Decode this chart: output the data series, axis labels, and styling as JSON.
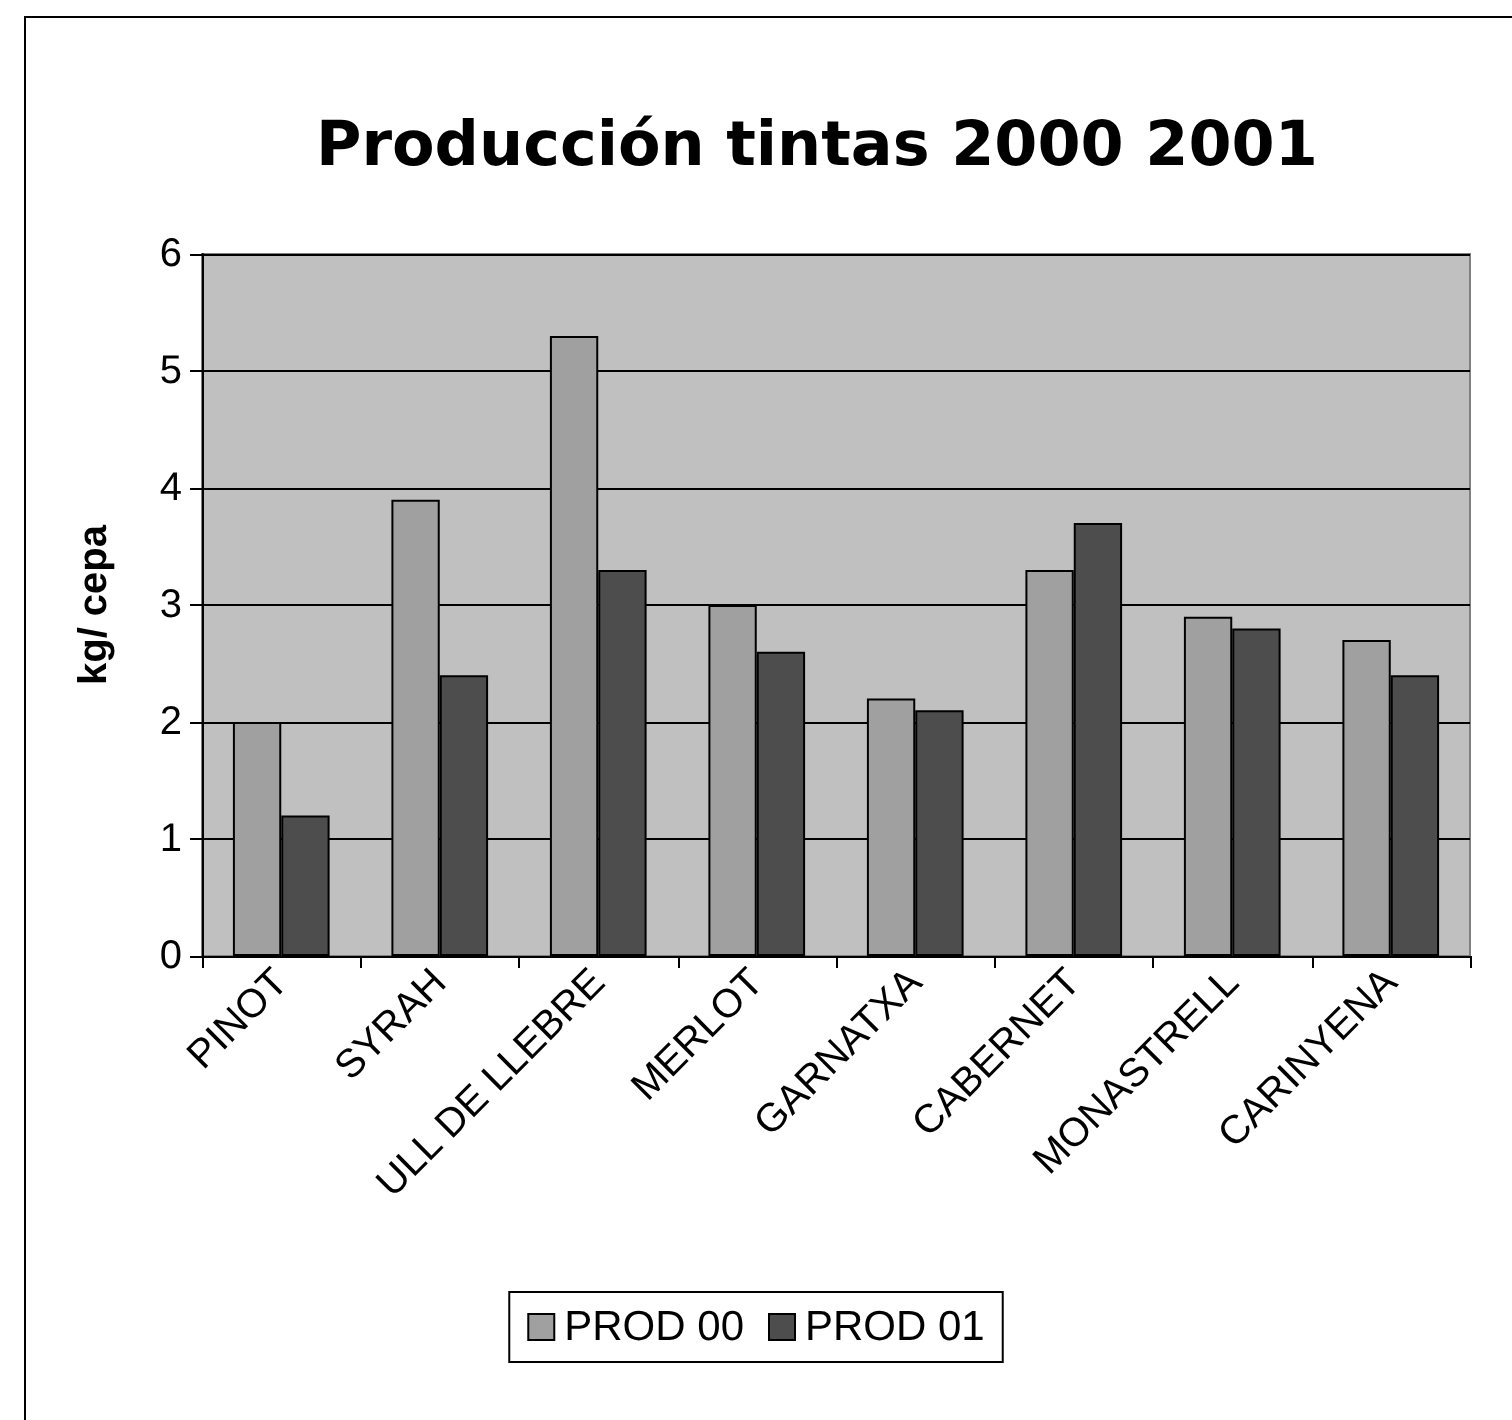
{
  "chart_data": {
    "type": "bar",
    "title": "Producción tintas 2000 2001",
    "ylabel": "kg/ cepa",
    "categories": [
      "PINOT",
      "SYRAH",
      "ULL DE LLEBRE",
      "MERLOT",
      "GARNATXA",
      "CABERNET",
      "MONASTRELL",
      "CARINYENA"
    ],
    "series": [
      {
        "name": "PROD 00",
        "color": "#a0a0a0",
        "values": [
          2,
          3.9,
          5.3,
          3,
          2.2,
          3.3,
          2.9,
          2.7
        ]
      },
      {
        "name": "PROD 01",
        "color": "#4d4d4d",
        "values": [
          1.2,
          2.4,
          3.3,
          2.6,
          2.1,
          3.7,
          2.8,
          2.4
        ]
      }
    ],
    "ylim": [
      0,
      6
    ],
    "yticks": [
      0,
      1,
      2,
      3,
      4,
      5,
      6
    ],
    "grid": "y",
    "legend": "bottom"
  }
}
